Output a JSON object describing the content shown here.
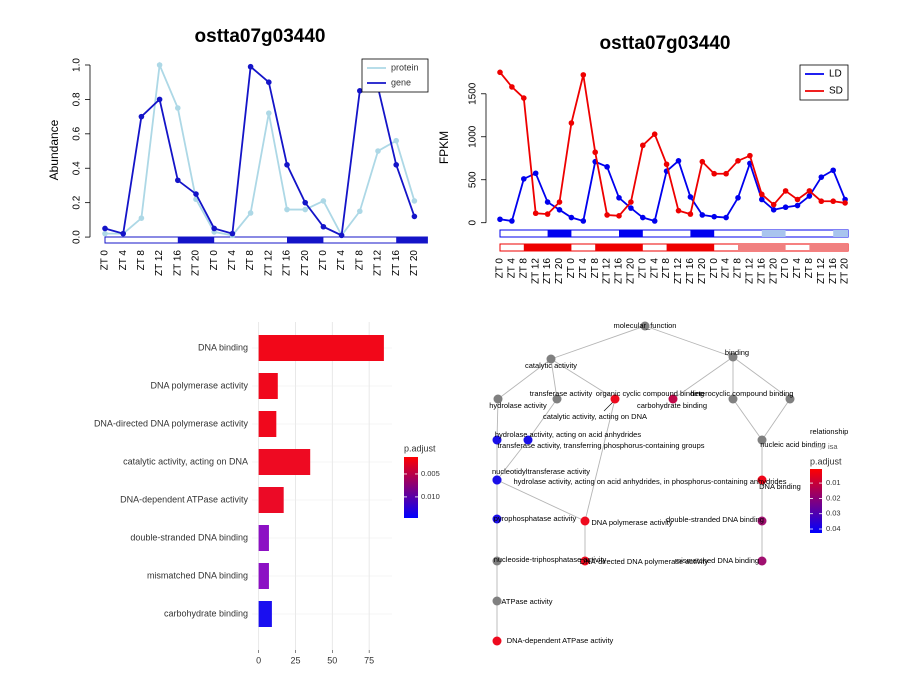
{
  "chart_data": [
    {
      "type": "line",
      "title": "ostta07g03440",
      "y_label": "Abundance",
      "categories": [
        "ZT 0",
        "ZT 4",
        "ZT 8",
        "ZT 12",
        "ZT 16",
        "ZT 20",
        "ZT 0",
        "ZT 4",
        "ZT 8",
        "ZT 12",
        "ZT 16",
        "ZT 20",
        "ZT 0",
        "ZT 4",
        "ZT 8",
        "ZT 12",
        "ZT 16",
        "ZT 20"
      ],
      "series": [
        {
          "name": "protein",
          "color": "#add8e6",
          "values": [
            0.02,
            0.02,
            0.11,
            1.0,
            0.75,
            0.22,
            0.03,
            0.01,
            0.14,
            0.72,
            0.16,
            0.16,
            0.21,
            0.01,
            0.15,
            0.5,
            0.56,
            0.21
          ]
        },
        {
          "name": "gene",
          "color": "#1414c8",
          "values": [
            0.05,
            0.02,
            0.7,
            0.8,
            0.33,
            0.25,
            0.05,
            0.02,
            0.99,
            0.9,
            0.42,
            0.2,
            0.06,
            0.01,
            0.85,
            0.87,
            0.42,
            0.12
          ]
        }
      ],
      "ylim": [
        -0.017,
        1.029
      ],
      "yticks": [
        {
          "value": 0,
          "label": "0.0"
        },
        0.2,
        0.4,
        0.6,
        0.8,
        {
          "value": 1,
          "label": "1.0"
        }
      ],
      "legend": "top-right"
    },
    {
      "type": "line",
      "title": "ostta07g03440",
      "y_label": "FPKM",
      "categories": [
        "ZT 0",
        "ZT 4",
        "ZT 8",
        "ZT 12",
        "ZT 16",
        "ZT 20",
        "ZT 0",
        "ZT 4",
        "ZT 8",
        "ZT 12",
        "ZT 16",
        "ZT 20",
        "ZT 0",
        "ZT 4",
        "ZT 8",
        "ZT 12",
        "ZT 16",
        "ZT 20",
        "ZT 0",
        "ZT 4",
        "ZT 8",
        "ZT 12",
        "ZT 16",
        "ZT 20",
        "ZT 0",
        "ZT 4",
        "ZT 8",
        "ZT 12",
        "ZT 16",
        "ZT 20"
      ],
      "series": [
        {
          "name": "LD",
          "color": "#0000ee",
          "values": [
            40,
            20,
            510,
            575,
            240,
            150,
            60,
            20,
            710,
            650,
            290,
            170,
            60,
            20,
            600,
            720,
            300,
            90,
            70,
            60,
            290,
            690,
            270,
            150,
            180,
            200,
            310,
            530,
            610,
            270
          ]
        },
        {
          "name": "SD",
          "color": "#ee0000",
          "values": [
            1750,
            1580,
            1450,
            110,
            100,
            240,
            1160,
            1720,
            820,
            90,
            80,
            240,
            900,
            1030,
            680,
            140,
            100,
            710,
            570,
            570,
            720,
            780,
            330,
            210,
            370,
            270,
            370,
            250,
            250,
            230
          ]
        }
      ],
      "ylim": [
        -50,
        1800
      ],
      "yticks": [
        0,
        500,
        1000,
        1500
      ],
      "legend": "top-right"
    },
    {
      "type": "bar",
      "orientation": "horizontal",
      "categories": [
        "DNA binding",
        "DNA polymerase activity",
        "DNA-directed DNA polymerase activity",
        "catalytic activity, acting on DNA",
        "DNA-dependent ATPase activity",
        "double-stranded DNA binding",
        "mismatched DNA binding",
        "carbohydrate binding"
      ],
      "values": [
        85,
        13,
        12,
        35,
        17,
        7,
        7,
        9
      ],
      "colors": [
        "#f20719",
        "#f0081c",
        "#f0081c",
        "#ee0a22",
        "#ec0a26",
        "#8c10c4",
        "#8c10c4",
        "#1a0ff0"
      ],
      "xlim": [
        -4.5,
        90.5
      ],
      "xticks": [
        0,
        25,
        50,
        75
      ],
      "grid": true,
      "colorbar": {
        "title": "p.adjust",
        "lim": [
          0.0013,
          0.0146
        ],
        "ticks": [
          0.005,
          {
            "value": 0.01,
            "label": "0.010"
          }
        ],
        "colors": [
          "#ff0000",
          "#0000ff"
        ]
      }
    }
  ],
  "network": {
    "nodes": [
      {
        "label": "molecular_function",
        "color": "#808080"
      },
      {
        "label": "catalytic activity",
        "color": "#808080"
      },
      {
        "label": "binding",
        "color": "#808080"
      },
      {
        "label": "transferase activity",
        "color": "#808080"
      },
      {
        "label": "hydrolase activity",
        "color": "#808080"
      },
      {
        "label": "organic cyclic compound binding",
        "color": "#808080"
      },
      {
        "label": "heterocyclic compound binding",
        "color": "#808080"
      },
      {
        "label": "carbohydrate binding",
        "color": "#c00a4a"
      },
      {
        "label": "catalytic activity, acting on DNA",
        "color": "#ee0a1e"
      },
      {
        "label": "nucleic acid binding",
        "color": "#808080"
      },
      {
        "label": "hydrolase activity, acting on acid anhydrides",
        "color": "#1a0fe8"
      },
      {
        "label": "transferase activity, transferring phosphorus-containing groups",
        "color": "#1a0fe8"
      },
      {
        "label": "nucleotidyltransferase activity",
        "color": "#1a0fe8"
      },
      {
        "label": "hydrolase activity, acting on acid anhydrides, in phosphorus-containing anhydrides",
        "color": "#1a0fe8"
      },
      {
        "label": "DNA binding",
        "color": "#f0061a"
      },
      {
        "label": "pyrophosphatase activity",
        "color": "#1a0fe8"
      },
      {
        "label": "DNA polymerase activity",
        "color": "#ee0a1e"
      },
      {
        "label": "double-stranded DNA binding",
        "color": "#a01070"
      },
      {
        "label": "nucleoside-triphosphatase activity",
        "color": "#808080"
      },
      {
        "label": "DNA-directed DNA polymerase activity",
        "color": "#ee0a1e"
      },
      {
        "label": "mismatched DNA binding",
        "color": "#a01070"
      },
      {
        "label": "ATPase activity",
        "color": "#808080"
      },
      {
        "label": "DNA-dependent ATPase activity",
        "color": "#ee0a1e"
      }
    ],
    "legend": {
      "relationship_title": "relationship",
      "relationship": "isa",
      "colorbar": {
        "title": "p.adjust",
        "lim": [
          0.0008,
          0.0426
        ],
        "ticks": [
          0.01,
          0.02,
          0.03,
          0.04
        ],
        "colors": [
          "#ff0000",
          "#0000ff"
        ]
      }
    }
  }
}
